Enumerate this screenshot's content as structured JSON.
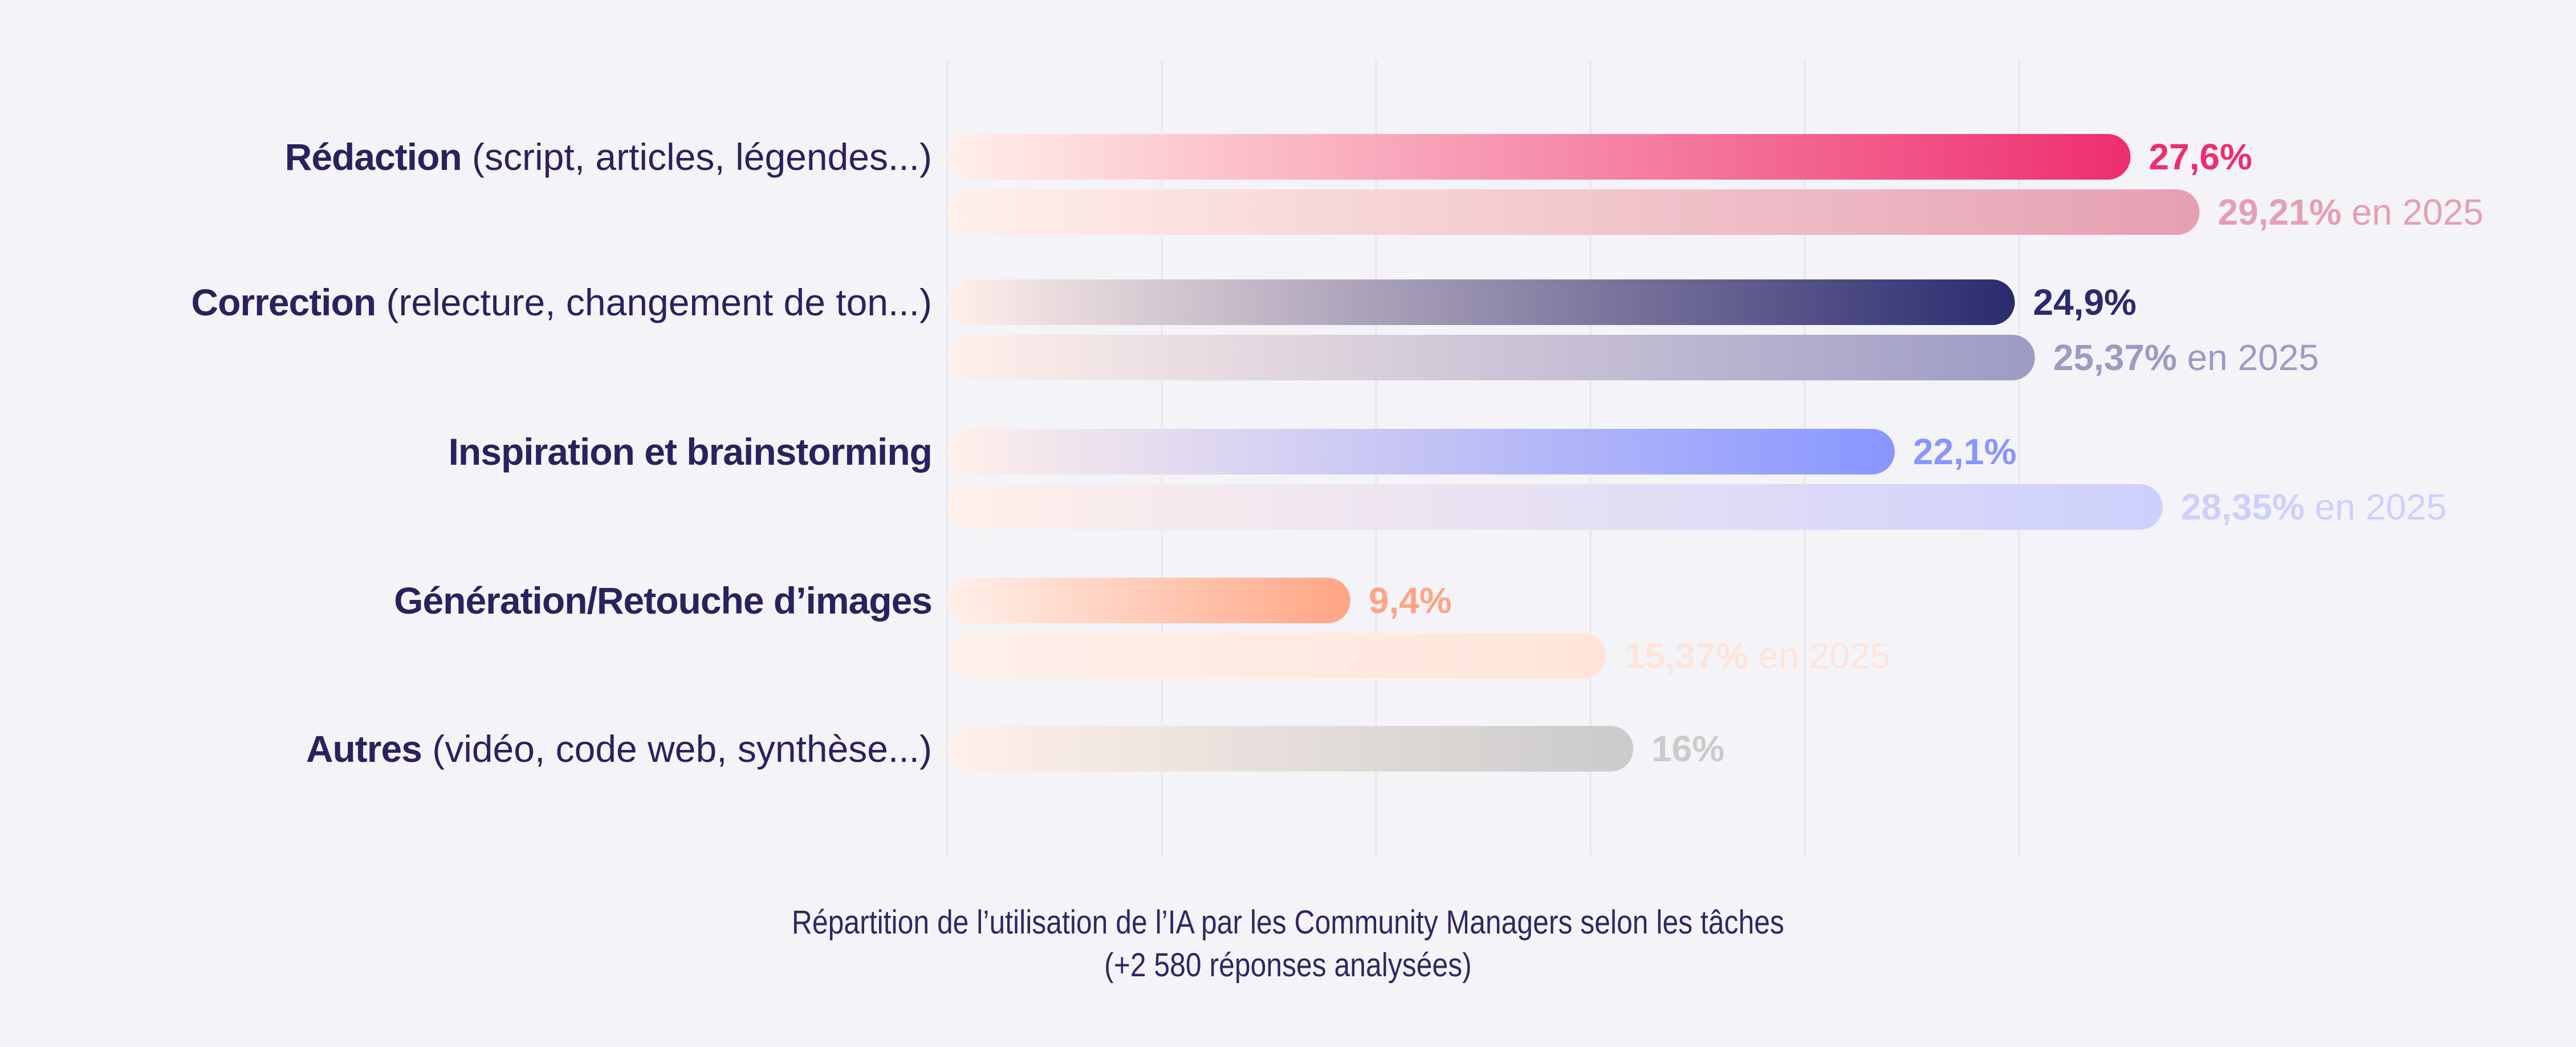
{
  "chart_data": {
    "type": "bar",
    "orientation": "horizontal",
    "categories": [
      {
        "bold": "Rédaction",
        "rest": " (script, articles, légendes...)"
      },
      {
        "bold": "Correction",
        "rest": " (relecture, changement de ton...)"
      },
      {
        "bold": "Inspiration et brainstorming",
        "rest": ""
      },
      {
        "bold": "Génération/Retouche d’images",
        "rest": ""
      },
      {
        "bold": "Autres",
        "rest": " (vidéo, code web, synthèse...)"
      }
    ],
    "series": [
      {
        "values": [
          27.6,
          24.9,
          22.1,
          9.4,
          16
        ],
        "labels": [
          "27,6%",
          "24,9%",
          "22,1%",
          "9,4%",
          "16%"
        ],
        "colors": [
          "#ee2e6e",
          "#2a2a6e",
          "#8896ff",
          "#ffa584",
          "#cbcbcb"
        ]
      },
      {
        "name": "en 2025",
        "values": [
          29.21,
          25.37,
          28.35,
          15.37,
          null
        ],
        "labels": [
          "29,21%",
          "25,37%",
          "28,35%",
          "15,37%",
          null
        ],
        "colors": [
          "#e59fb2",
          "#9c9bc4",
          "#cdd0fc",
          "#ffe4da",
          null
        ]
      }
    ],
    "xlim": [
      0,
      30
    ],
    "grid": true,
    "caption_lines": [
      "Répartition de l’utilisation de l’IA par les Community Managers selon les tâches",
      "(+2 580 réponses analysées)"
    ]
  }
}
